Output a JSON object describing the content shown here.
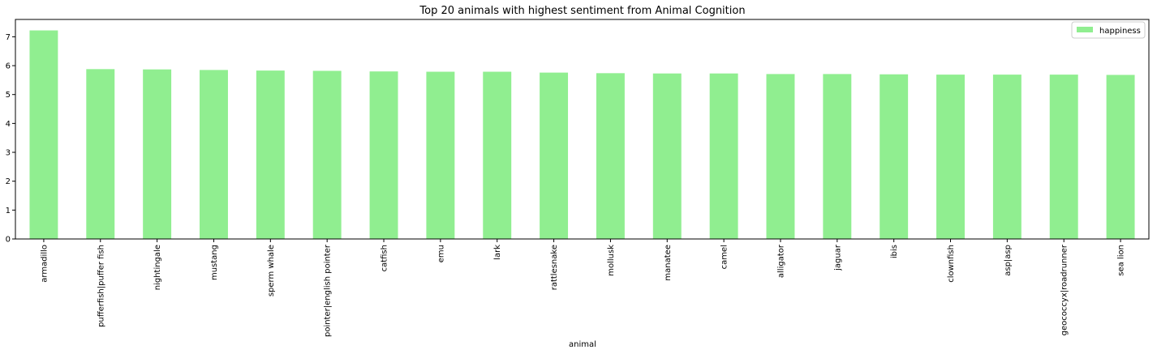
{
  "chart_data": {
    "type": "bar",
    "title": "Top 20 animals with highest sentiment from Animal Cognition",
    "xlabel": "animal",
    "ylabel": "",
    "categories": [
      "armadillo",
      "pufferfish|puffer fish",
      "nightingale",
      "mustang",
      "sperm whale",
      "pointer|english pointer",
      "catfish",
      "emu",
      "lark",
      "rattlesnake",
      "mollusk",
      "manatee",
      "camel",
      "alligator",
      "jaguar",
      "ibis",
      "clownfish",
      "asp|asp",
      "geococcyx|roadrunner",
      "sea lion"
    ],
    "series": [
      {
        "name": "happiness",
        "color": "#90ee90",
        "values": [
          7.22,
          5.88,
          5.87,
          5.85,
          5.83,
          5.82,
          5.8,
          5.79,
          5.79,
          5.76,
          5.74,
          5.73,
          5.73,
          5.71,
          5.71,
          5.7,
          5.69,
          5.69,
          5.69,
          5.68
        ]
      }
    ],
    "ylim": [
      0,
      7.6
    ],
    "yticks": [
      0,
      1,
      2,
      3,
      4,
      5,
      6,
      7
    ],
    "grid": false,
    "legend_position": "top-right"
  }
}
